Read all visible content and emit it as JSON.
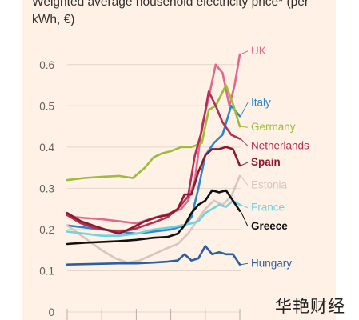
{
  "title": "Weighted average household electricity price* (per kWh, €)",
  "watermark": "华艳财经",
  "chart_data": {
    "type": "line",
    "title": "Weighted average household electricity price* (per kWh, €)",
    "xlabel": "",
    "ylabel": "",
    "yticks": [
      0,
      0.1,
      0.2,
      0.3,
      0.4,
      0.5,
      0.6
    ],
    "ylim": [
      0,
      0.65
    ],
    "xlim": [
      0,
      100
    ],
    "grid": true,
    "legend": "direct labels at right end of lines",
    "series": [
      {
        "name": "UK",
        "color": "#e0698d",
        "label_y": 0.625,
        "x": [
          0,
          5,
          10,
          20,
          30,
          40,
          50,
          60,
          66,
          70,
          74,
          78,
          82,
          86,
          90,
          94,
          97,
          100
        ],
        "y": [
          0.235,
          0.23,
          0.228,
          0.225,
          0.22,
          0.215,
          0.228,
          0.24,
          0.25,
          0.27,
          0.32,
          0.45,
          0.52,
          0.6,
          0.58,
          0.5,
          0.55,
          0.625
        ]
      },
      {
        "name": "Italy",
        "color": "#2f87c8",
        "label_y": 0.5,
        "x": [
          0,
          10,
          20,
          30,
          40,
          50,
          60,
          68,
          72,
          76,
          80,
          85,
          90,
          95,
          100
        ],
        "y": [
          0.21,
          0.205,
          0.2,
          0.195,
          0.19,
          0.195,
          0.2,
          0.21,
          0.23,
          0.3,
          0.38,
          0.41,
          0.43,
          0.5,
          0.475
        ]
      },
      {
        "name": "Germany",
        "color": "#9dbc3a",
        "label_y": 0.44,
        "x": [
          0,
          10,
          20,
          30,
          38,
          45,
          50,
          55,
          60,
          66,
          72,
          78,
          82,
          86,
          92,
          96,
          100
        ],
        "y": [
          0.32,
          0.325,
          0.328,
          0.33,
          0.325,
          0.35,
          0.375,
          0.385,
          0.39,
          0.4,
          0.4,
          0.41,
          0.49,
          0.5,
          0.55,
          0.505,
          0.45
        ]
      },
      {
        "name": "Netherlands",
        "color": "#b52e54",
        "label_y": 0.395,
        "x": [
          0,
          8,
          15,
          22,
          30,
          38,
          45,
          52,
          58,
          64,
          70,
          74,
          78,
          82,
          86,
          90,
          95,
          100
        ],
        "y": [
          0.235,
          0.215,
          0.205,
          0.2,
          0.195,
          0.2,
          0.21,
          0.22,
          0.23,
          0.25,
          0.28,
          0.38,
          0.44,
          0.535,
          0.5,
          0.46,
          0.43,
          0.42
        ]
      },
      {
        "name": "Spain",
        "color": "#8b1a2f",
        "label_y": 0.355,
        "x": [
          0,
          8,
          15,
          22,
          30,
          38,
          45,
          52,
          58,
          64,
          68,
          72,
          76,
          80,
          84,
          88,
          92,
          96,
          100
        ],
        "y": [
          0.24,
          0.22,
          0.21,
          0.2,
          0.19,
          0.205,
          0.22,
          0.23,
          0.235,
          0.25,
          0.285,
          0.285,
          0.34,
          0.38,
          0.395,
          0.395,
          0.4,
          0.395,
          0.355
        ]
      },
      {
        "name": "Estonia",
        "color": "#d9c5c0",
        "label_y": 0.3,
        "x": [
          0,
          10,
          20,
          28,
          35,
          42,
          50,
          58,
          64,
          70,
          75,
          80,
          85,
          90,
          95,
          100
        ],
        "y": [
          0.21,
          0.18,
          0.15,
          0.13,
          0.12,
          0.125,
          0.14,
          0.155,
          0.165,
          0.19,
          0.22,
          0.25,
          0.27,
          0.26,
          0.28,
          0.33
        ]
      },
      {
        "name": "France",
        "color": "#6fd3e0",
        "label_y": 0.245,
        "x": [
          0,
          10,
          20,
          30,
          40,
          50,
          60,
          66,
          72,
          76,
          80,
          84,
          88,
          92,
          96,
          100
        ],
        "y": [
          0.195,
          0.19,
          0.185,
          0.185,
          0.19,
          0.2,
          0.205,
          0.21,
          0.215,
          0.22,
          0.24,
          0.25,
          0.26,
          0.255,
          0.27,
          0.26
        ]
      },
      {
        "name": "Greece",
        "color": "#111111",
        "label_y": 0.2,
        "x": [
          0,
          10,
          20,
          30,
          40,
          50,
          58,
          64,
          68,
          72,
          76,
          80,
          84,
          88,
          92,
          96,
          100
        ],
        "y": [
          0.165,
          0.168,
          0.17,
          0.172,
          0.175,
          0.18,
          0.182,
          0.19,
          0.21,
          0.24,
          0.26,
          0.27,
          0.295,
          0.29,
          0.295,
          0.27,
          0.245
        ]
      },
      {
        "name": "Hungary",
        "color": "#2c5f9e",
        "label_y": 0.11,
        "x": [
          0,
          10,
          20,
          30,
          40,
          50,
          58,
          64,
          68,
          72,
          76,
          80,
          84,
          88,
          92,
          96,
          100
        ],
        "y": [
          0.115,
          0.116,
          0.117,
          0.118,
          0.118,
          0.12,
          0.122,
          0.125,
          0.14,
          0.125,
          0.13,
          0.16,
          0.14,
          0.145,
          0.14,
          0.14,
          0.115
        ]
      }
    ]
  }
}
